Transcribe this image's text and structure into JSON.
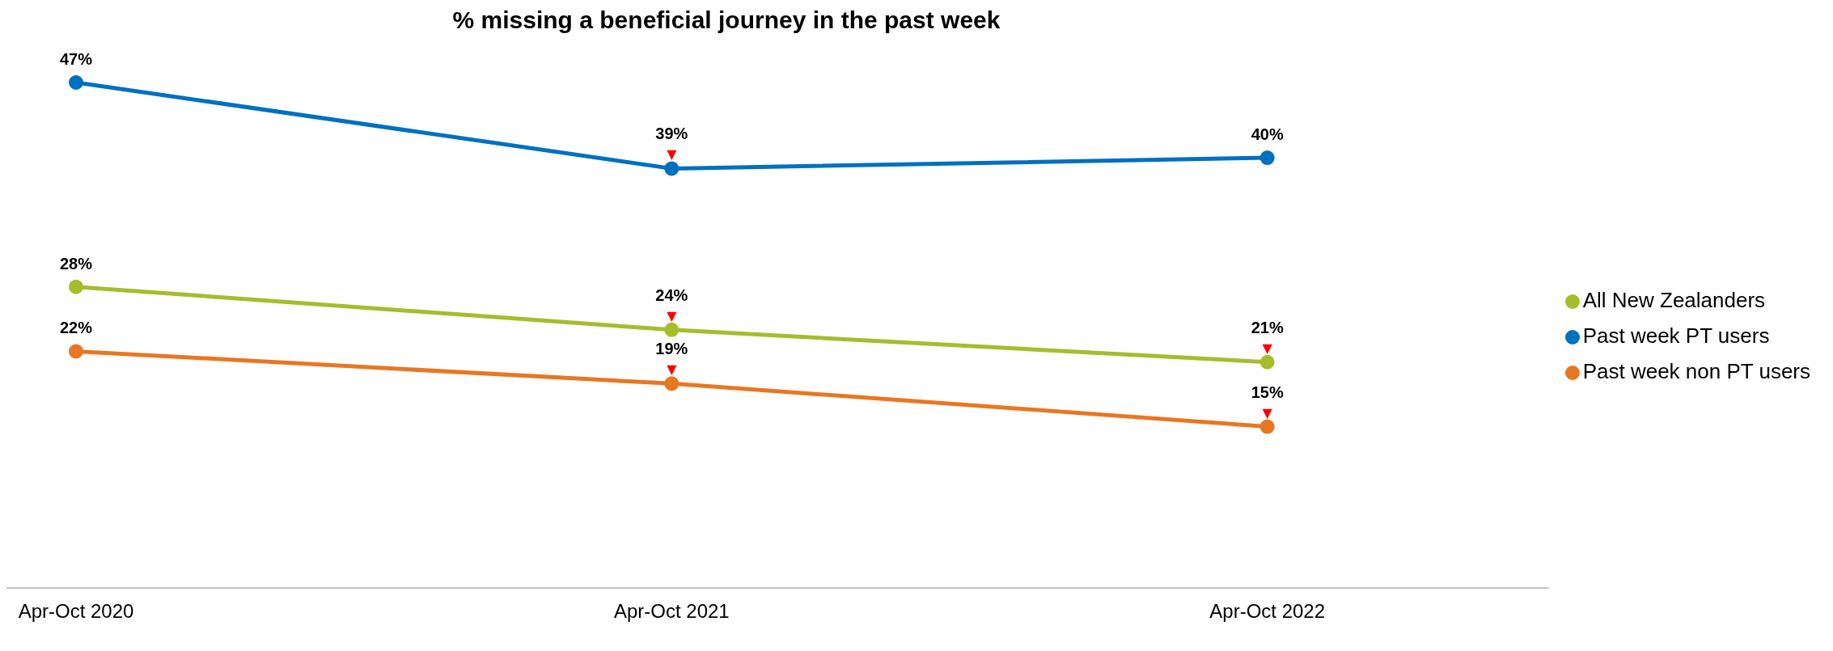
{
  "chart_data": {
    "type": "line",
    "title": "% missing a beneficial journey in the past week",
    "categories": [
      "Apr-Oct 2020",
      "Apr-Oct 2021",
      "Apr-Oct 2022"
    ],
    "series": [
      {
        "name": "All New Zealanders",
        "color": "#a5bd2c",
        "values": [
          28,
          24,
          21
        ],
        "value_labels": [
          "28%",
          "24%",
          "21%"
        ]
      },
      {
        "name": "Past week PT users",
        "color": "#0070c0",
        "values": [
          47,
          39,
          40
        ],
        "value_labels": [
          "47%",
          "39%",
          "40%"
        ]
      },
      {
        "name": "Past week non PT users",
        "color": "#e87722",
        "values": [
          22,
          19,
          15
        ],
        "value_labels": [
          "22%",
          "19%",
          "15%"
        ]
      }
    ],
    "annotations": [
      {
        "text": "▼",
        "x": "Apr-Oct 2021",
        "y": 39
      },
      {
        "text": "▼",
        "x": "Apr-Oct 2021",
        "y": 24
      },
      {
        "text": "▼",
        "x": "Apr-Oct 2022",
        "y": 21
      },
      {
        "text": "▼",
        "x": "Apr-Oct 2021",
        "y": 19
      },
      {
        "text": "▼",
        "x": "Apr-Oct 2022",
        "y": 15
      }
    ],
    "legend": "right",
    "marker": "circle",
    "line_style": "solid",
    "grid": false
  }
}
